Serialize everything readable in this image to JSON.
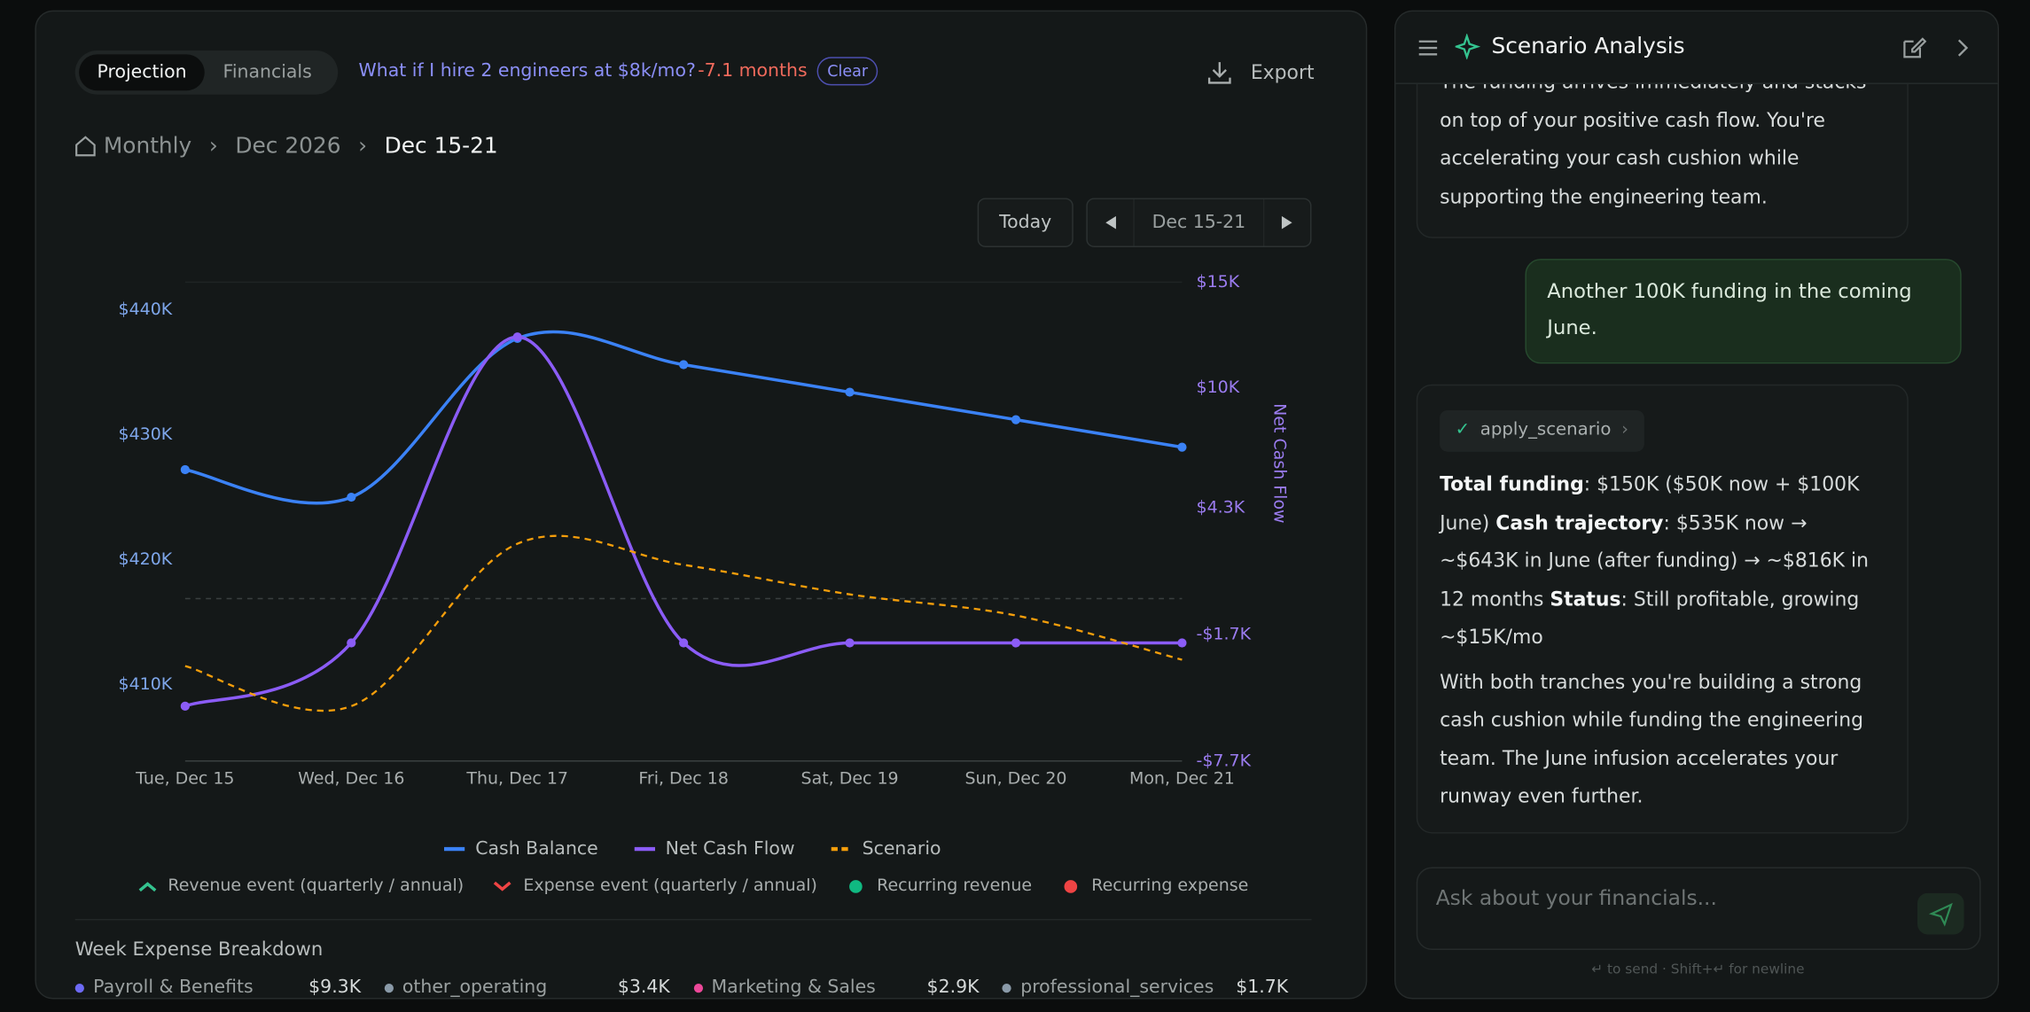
{
  "header": {
    "tabs": [
      "Projection",
      "Financials"
    ],
    "active_tab": 0,
    "scenario_query": "What if I hire 2 engineers at $8k/mo?",
    "scenario_delta": "-7.1 months",
    "clear": "Clear",
    "export": "Export"
  },
  "breadcrumb": [
    "Monthly",
    "Dec 2026",
    "Dec 15-21"
  ],
  "nav": {
    "today": "Today",
    "range": "Dec 15-21"
  },
  "chart_data": {
    "type": "line",
    "categories": [
      "Tue, Dec 15",
      "Wed, Dec 16",
      "Thu, Dec 17",
      "Fri, Dec 18",
      "Sat, Dec 19",
      "Sun, Dec 20",
      "Mon, Dec 21"
    ],
    "series": [
      {
        "name": "Cash Balance",
        "color": "#3b82f6",
        "values": [
          427200,
          425000,
          437700,
          435600,
          433400,
          431200,
          429000
        ],
        "marker": true,
        "dash": false
      },
      {
        "name": "Net Cash Flow",
        "color": "#8b5cf6",
        "axis": "y2",
        "values": [
          -5100,
          -2100,
          12400,
          -2100,
          -2100,
          -2100,
          -2100
        ],
        "marker": true,
        "dash": false
      },
      {
        "name": "Scenario",
        "color": "#f59e0b",
        "axis": "y2",
        "values": [
          -3200,
          -5100,
          2600,
          1600,
          200,
          -800,
          -2900
        ],
        "marker": false,
        "dash": true
      }
    ],
    "ylim": [
      403900,
      442200
    ],
    "yticks": [
      {
        "value": 410000,
        "label": "$410K"
      },
      {
        "value": 420000,
        "label": "$420K"
      },
      {
        "value": 430000,
        "label": "$430K"
      },
      {
        "value": 440000,
        "label": "$440K"
      }
    ],
    "y2lim": [
      -7700,
      15000
    ],
    "y2ticks": [
      {
        "value": -7700,
        "label": "-$7.7K"
      },
      {
        "value": -1700,
        "label": "-$1.7K"
      },
      {
        "value": 4300,
        "label": "$4.3K"
      },
      {
        "value": 10000,
        "label": "$10K"
      },
      {
        "value": 15000,
        "label": "$15K"
      }
    ],
    "y2label": "Net Cash Flow",
    "grid": false
  },
  "event_legend": [
    {
      "label": "Revenue event (quarterly / annual)",
      "color": "#34c38f",
      "marker": "chevron-up"
    },
    {
      "label": "Expense event (quarterly / annual)",
      "color": "#ef4444",
      "marker": "chevron-down"
    },
    {
      "label": "Recurring revenue",
      "color": "#10b981",
      "marker": "dot"
    },
    {
      "label": "Recurring expense",
      "color": "#ef4444",
      "marker": "dot"
    }
  ],
  "breakdown": {
    "title": "Week Expense Breakdown",
    "items": [
      {
        "name": "Payroll & Benefits",
        "amount": "$9.3K",
        "color": "#6d6af5"
      },
      {
        "name": "other_operating",
        "amount": "$3.4K",
        "color": "#8a9aa8"
      },
      {
        "name": "Marketing & Sales",
        "amount": "$2.9K",
        "color": "#ec4899"
      },
      {
        "name": "professional_services",
        "amount": "$1.7K",
        "color": "#8a9aa8"
      }
    ]
  },
  "chat": {
    "title": "Scenario Analysis",
    "previous_reply": "The funding arrives immediately and stacks on top of your positive cash flow. You're accelerating your cash cushion while supporting the engineering team.",
    "user_message": "Another 100K funding in the coming June.",
    "tool": "apply_scenario",
    "reply": [
      [
        {
          "text": "Total funding",
          "bold": true
        },
        {
          "text": ": $150K ($50K now + $100K June) "
        },
        {
          "text": "Cash trajectory",
          "bold": true
        },
        {
          "text": ": $535K now → ~$643K in June (after funding) → ~$816K in 12 months "
        },
        {
          "text": "Status",
          "bold": true
        },
        {
          "text": ": Still profitable, growing ~$15K/mo"
        }
      ],
      [
        {
          "text": "With both tranches you're building a strong cash cushion while funding the engineering team. The June infusion accelerates your runway even further."
        }
      ]
    ],
    "input_placeholder": "Ask about your financials...",
    "hint": "↵ to send · Shift+↵ for newline"
  }
}
